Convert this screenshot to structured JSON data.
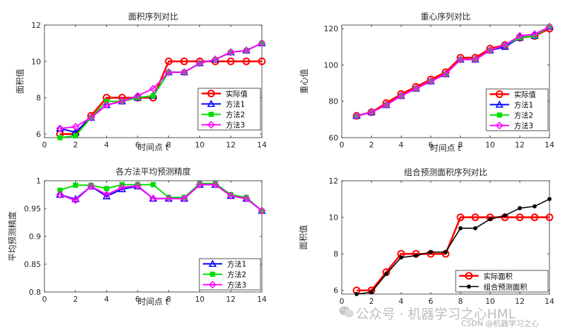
{
  "chart_data": [
    {
      "id": "area",
      "type": "line",
      "title": "面积序列对比",
      "xlabel": "时间点 t",
      "ylabel": "面积值",
      "xlim": [
        0,
        14
      ],
      "ylim": [
        5.8,
        12
      ],
      "xticks": [
        0,
        2,
        4,
        6,
        8,
        10,
        12,
        14
      ],
      "yticks": [
        6,
        8,
        10,
        12
      ],
      "ytick_labels": [
        "6",
        "8",
        "10",
        "12"
      ],
      "legend_position": "lower-right",
      "grid": false,
      "x": [
        1,
        2,
        3,
        4,
        5,
        6,
        7,
        8,
        9,
        10,
        11,
        12,
        13,
        14
      ],
      "series": [
        {
          "name": "实际值",
          "color": "#ff0000",
          "marker": "circle",
          "values": [
            6.0,
            6.0,
            7.0,
            8.0,
            8.0,
            8.0,
            8.0,
            10.0,
            10.0,
            10.0,
            10.0,
            10.0,
            10.0,
            10.0
          ]
        },
        {
          "name": "方法1",
          "color": "#0000ff",
          "marker": "triangle",
          "values": [
            6.3,
            6.1,
            6.9,
            7.6,
            7.8,
            8.0,
            8.1,
            9.4,
            9.4,
            9.9,
            10.1,
            10.5,
            10.6,
            11.0
          ]
        },
        {
          "name": "方法2",
          "color": "#00dd00",
          "marker": "square",
          "values": [
            5.8,
            5.9,
            6.9,
            7.8,
            7.8,
            8.0,
            8.1,
            9.4,
            9.4,
            9.9,
            10.1,
            10.5,
            10.6,
            11.0
          ]
        },
        {
          "name": "方法3",
          "color": "#ff00ff",
          "marker": "diamond",
          "values": [
            6.3,
            6.4,
            6.9,
            7.6,
            7.8,
            8.1,
            8.5,
            9.4,
            9.4,
            9.9,
            10.1,
            10.5,
            10.6,
            11.0
          ]
        }
      ]
    },
    {
      "id": "centroid",
      "type": "line",
      "title": "重心序列对比",
      "xlabel": "时间点 t",
      "ylabel": "重心值",
      "xlim": [
        0,
        14
      ],
      "ylim": [
        60,
        122
      ],
      "xticks": [
        0,
        2,
        4,
        6,
        8,
        10,
        12,
        14
      ],
      "yticks": [
        60,
        80,
        100,
        120
      ],
      "ytick_labels": [
        "60",
        "80",
        "100",
        "120"
      ],
      "legend_position": "lower-right",
      "grid": false,
      "x": [
        1,
        2,
        3,
        4,
        5,
        6,
        7,
        8,
        9,
        10,
        11,
        12,
        13,
        14
      ],
      "series": [
        {
          "name": "实际值",
          "color": "#ff0000",
          "marker": "circle",
          "values": [
            72,
            74,
            79,
            84,
            88,
            92,
            96,
            104,
            104,
            109,
            111,
            115,
            116,
            120
          ]
        },
        {
          "name": "方法1",
          "color": "#0000ff",
          "marker": "triangle",
          "values": [
            72,
            74,
            78,
            83,
            87,
            91,
            95,
            103,
            103,
            108,
            110,
            115,
            116,
            121
          ]
        },
        {
          "name": "方法2",
          "color": "#00dd00",
          "marker": "square",
          "values": [
            72,
            74,
            78,
            83,
            87,
            91,
            95,
            103,
            103,
            108,
            111,
            115,
            116,
            121
          ]
        },
        {
          "name": "方法3",
          "color": "#ff00ff",
          "marker": "diamond",
          "values": [
            72,
            74,
            78,
            83,
            87,
            91,
            95,
            103,
            103,
            108,
            111,
            116,
            117,
            121
          ]
        }
      ]
    },
    {
      "id": "accuracy",
      "type": "line",
      "title": "各方法平均预测精度",
      "xlabel": "时间点 t",
      "ylabel": "平均预测精度",
      "xlim": [
        0,
        14
      ],
      "ylim": [
        0.8,
        1.0
      ],
      "xticks": [
        0,
        2,
        4,
        6,
        8,
        10,
        12,
        14
      ],
      "yticks": [
        0.8,
        0.85,
        0.9,
        0.95,
        1.0
      ],
      "ytick_labels": [
        "0.8",
        "0.85",
        "0.9",
        "0.95",
        "1"
      ],
      "legend_position": "lower-right",
      "grid": false,
      "x": [
        1,
        2,
        3,
        4,
        5,
        6,
        7,
        8,
        9,
        10,
        11,
        12,
        13,
        14
      ],
      "series": [
        {
          "name": "方法1",
          "color": "#0000ff",
          "marker": "triangle",
          "values": [
            0.975,
            0.967,
            0.99,
            0.972,
            0.985,
            0.99,
            0.968,
            0.968,
            0.968,
            0.993,
            0.993,
            0.973,
            0.968,
            0.946
          ]
        },
        {
          "name": "方法2",
          "color": "#00dd00",
          "marker": "square",
          "values": [
            0.983,
            0.992,
            0.992,
            0.986,
            0.993,
            0.993,
            0.993,
            0.97,
            0.97,
            0.995,
            0.995,
            0.975,
            0.97,
            0.946
          ]
        },
        {
          "name": "方法3",
          "color": "#ff00ff",
          "marker": "diamond",
          "values": [
            0.975,
            0.965,
            0.99,
            0.975,
            0.988,
            0.991,
            0.968,
            0.968,
            0.968,
            0.993,
            0.993,
            0.973,
            0.968,
            0.946
          ]
        }
      ]
    },
    {
      "id": "combined",
      "type": "line",
      "title": "组合预测面积序列对比",
      "xlabel": "",
      "ylabel": "面积值",
      "xlim": [
        0,
        14
      ],
      "ylim": [
        5.8,
        12
      ],
      "xticks": [
        0,
        2,
        4,
        6,
        8,
        10,
        12,
        14
      ],
      "yticks": [
        6,
        8,
        10,
        12
      ],
      "ytick_labels": [
        "6",
        "8",
        "10",
        "12"
      ],
      "legend_position": "lower-right",
      "grid": false,
      "x": [
        1,
        2,
        3,
        4,
        5,
        6,
        7,
        8,
        9,
        10,
        11,
        12,
        13,
        14
      ],
      "series": [
        {
          "name": "实际面积",
          "color": "#ff0000",
          "marker": "circle",
          "values": [
            6.0,
            6.0,
            7.0,
            8.0,
            8.0,
            8.0,
            8.0,
            10.0,
            10.0,
            10.0,
            10.0,
            10.0,
            10.0,
            10.0
          ]
        },
        {
          "name": "组合预测面积",
          "color": "#000000",
          "marker": "star",
          "values": [
            5.8,
            5.9,
            6.9,
            7.8,
            7.9,
            8.1,
            8.1,
            9.4,
            9.4,
            9.9,
            10.1,
            10.5,
            10.6,
            11.0
          ]
        }
      ]
    }
  ],
  "watermark": {
    "main": "公众号 · 机器学习之心HML",
    "sub": "CSDN @机器学习之心"
  }
}
